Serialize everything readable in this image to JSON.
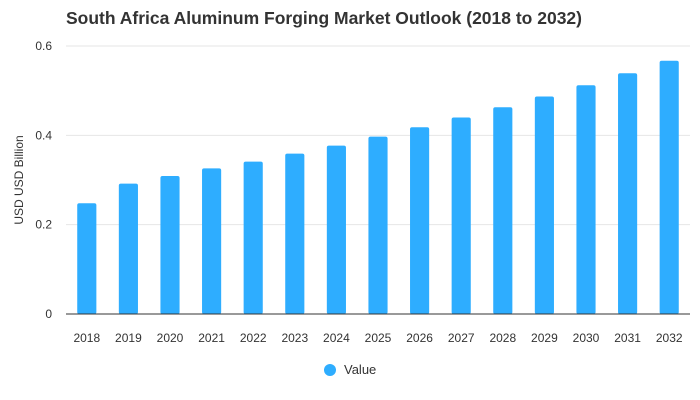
{
  "chart_data": {
    "type": "bar",
    "title": "South Africa Aluminum Forging Market Outlook (2018 to 2032)",
    "xlabel": "",
    "ylabel": "USD USD Billion",
    "categories": [
      "2018",
      "2019",
      "2020",
      "2021",
      "2022",
      "2023",
      "2024",
      "2025",
      "2026",
      "2027",
      "2028",
      "2029",
      "2030",
      "2031",
      "2032"
    ],
    "series": [
      {
        "name": "Value",
        "values": [
          0.248,
          0.292,
          0.309,
          0.326,
          0.341,
          0.359,
          0.377,
          0.397,
          0.418,
          0.44,
          0.463,
          0.487,
          0.512,
          0.539,
          0.567
        ]
      }
    ],
    "ylim": [
      0,
      0.6
    ],
    "yticks": [
      "0",
      "0.2",
      "0.4",
      "0.6"
    ],
    "grid": true,
    "legend": "bottom",
    "colors": {
      "bar": "#2eadff",
      "grid": "#e6e6e6",
      "text": "#333333",
      "axis": "#333333"
    }
  }
}
